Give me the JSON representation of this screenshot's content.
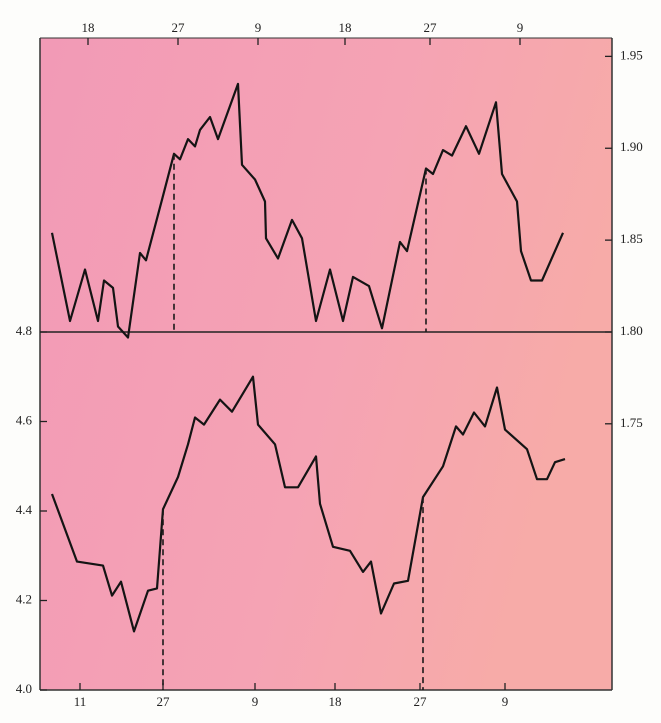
{
  "chart_data": [
    {
      "type": "line",
      "xaxis": "top",
      "axis": "y2",
      "color": "#141414",
      "xlim": [
        0,
        57.2
      ],
      "xticks": [
        {
          "value": 4.8,
          "label": "18"
        },
        {
          "value": 13.8,
          "label": "27"
        },
        {
          "value": 21.8,
          "label": "9"
        },
        {
          "value": 30.5,
          "label": "18"
        },
        {
          "value": 39,
          "label": "27"
        },
        {
          "value": 48,
          "label": "9"
        }
      ],
      "y2lim": [
        1.8,
        1.96
      ],
      "y2ticks": [
        1.95,
        {
          "value": 1.9,
          "label": "1.90"
        },
        1.85,
        {
          "value": 1.8,
          "label": "1.80"
        }
      ],
      "x": [
        1.2,
        3.0,
        4.5,
        5.8,
        6.4,
        7.3,
        7.8,
        8.8,
        10.0,
        10.6,
        12.2,
        13.4,
        14.0,
        14.8,
        15.5,
        16.0,
        17.0,
        17.8,
        19.8,
        20.2,
        21.5,
        22.5,
        22.6,
        23.8,
        25.2,
        26.2,
        27.6,
        29.0,
        30.3,
        31.3,
        32.9,
        34.2,
        36.0,
        36.7,
        38.6,
        39.3,
        40.3,
        41.2,
        42.6,
        43.9,
        45.6,
        46.2,
        47.7,
        48.1,
        49.1,
        50.2,
        52.3
      ],
      "values": [
        1.854,
        1.806,
        1.834,
        1.806,
        1.828,
        1.824,
        1.803,
        1.797,
        1.843,
        1.839,
        1.872,
        1.897,
        1.894,
        1.905,
        1.901,
        1.91,
        1.917,
        1.905,
        1.935,
        1.891,
        1.883,
        1.871,
        1.851,
        1.84,
        1.861,
        1.851,
        1.806,
        1.834,
        1.806,
        1.83,
        1.825,
        1.802,
        1.849,
        1.844,
        1.889,
        1.886,
        1.899,
        1.896,
        1.912,
        1.897,
        1.925,
        1.886,
        1.871,
        1.844,
        1.828,
        1.828,
        1.854
      ],
      "dashed_lines": [
        {
          "x": 13.4,
          "y": 1.897
        },
        {
          "x": 38.6,
          "y": 1.889
        }
      ]
    },
    {
      "type": "line",
      "xaxis": "bottom",
      "axis": "y",
      "color": "#141414",
      "xlim": [
        0,
        57.2
      ],
      "xticks": [
        {
          "value": 4,
          "label": "11"
        },
        {
          "value": 12.3,
          "label": "27"
        },
        {
          "value": 21.5,
          "label": "9"
        },
        {
          "value": 29.5,
          "label": "18"
        },
        {
          "value": 38,
          "label": "27"
        },
        {
          "value": 46.5,
          "label": "9"
        }
      ],
      "ylim": [
        4.0,
        4.8
      ],
      "yticks": [
        4.8,
        4.6,
        4.4,
        4.2,
        {
          "value": 4.0,
          "label": "4.0"
        }
      ],
      "y2lim": [
        1.605,
        1.8
      ],
      "y2ticks": [
        1.75
      ],
      "x": [
        1.2,
        3.7,
        6.3,
        7.2,
        8.1,
        9.4,
        10.8,
        11.7,
        12.3,
        13.8,
        14.8,
        15.5,
        16.4,
        18.0,
        19.2,
        21.3,
        21.8,
        23.5,
        24.5,
        25.8,
        27.6,
        28.0,
        29.3,
        31.0,
        32.3,
        33.1,
        34.1,
        35.4,
        36.8,
        38.3,
        40.3,
        41.6,
        42.3,
        43.4,
        44.5,
        45.7,
        46.5,
        48.7,
        49.7,
        50.7,
        51.5,
        52.5
      ],
      "values": [
        4.438,
        4.287,
        4.278,
        4.211,
        4.242,
        4.131,
        4.222,
        4.227,
        4.404,
        4.476,
        4.549,
        4.609,
        4.593,
        4.649,
        4.622,
        4.7,
        4.593,
        4.549,
        4.453,
        4.453,
        4.522,
        4.416,
        4.32,
        4.311,
        4.264,
        4.287,
        4.171,
        4.238,
        4.244,
        4.431,
        4.5,
        4.589,
        4.571,
        4.62,
        4.589,
        4.676,
        4.582,
        4.538,
        4.471,
        4.471,
        4.509,
        4.516
      ],
      "dashed_lines": [
        {
          "x": 12.3,
          "y": 4.404
        },
        {
          "x": 38.3,
          "y": 4.431
        }
      ]
    }
  ]
}
